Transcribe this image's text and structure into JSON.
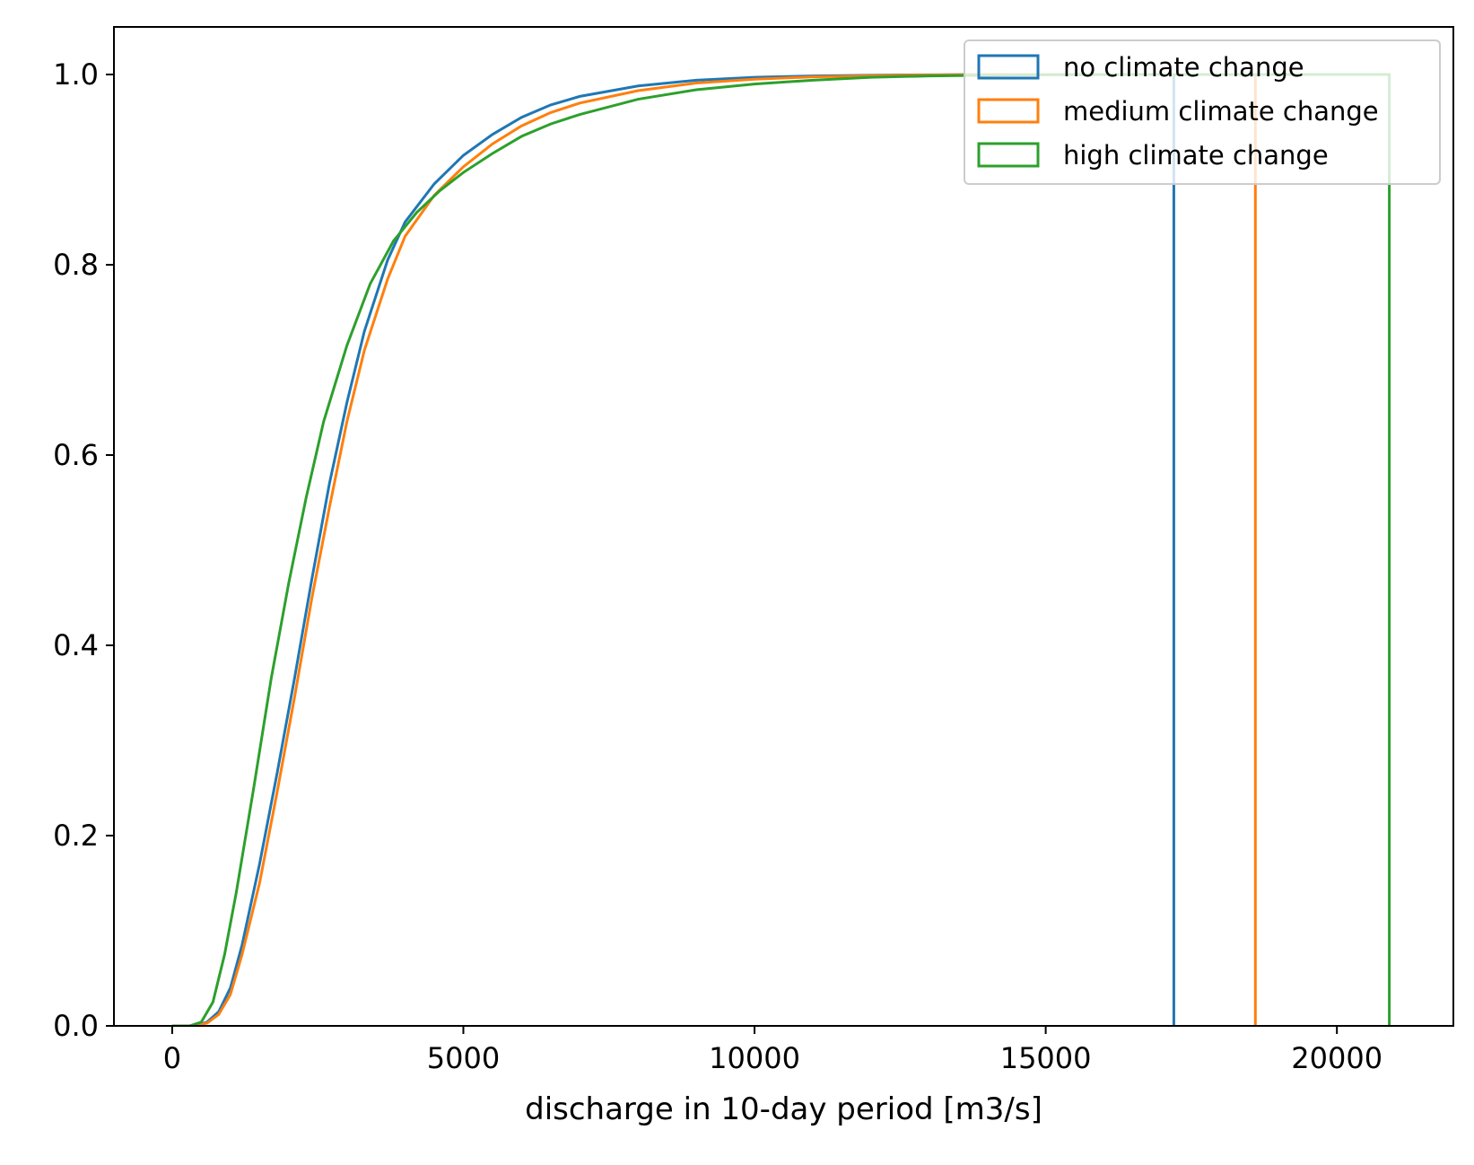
{
  "chart_data": {
    "type": "line",
    "subtype": "cumulative step histogram (CDF)",
    "title": "",
    "xlabel": "discharge in 10-day period [m3/s]",
    "ylabel": "",
    "xlim": [
      -1000,
      22000
    ],
    "ylim": [
      0,
      1.05
    ],
    "xticks": [
      0,
      5000,
      10000,
      15000,
      20000
    ],
    "xtick_labels": [
      "0",
      "5000",
      "10000",
      "15000",
      "20000"
    ],
    "yticks": [
      0,
      0.2,
      0.4,
      0.6,
      0.8,
      1.0
    ],
    "ytick_labels": [
      "0.0",
      "0.2",
      "0.4",
      "0.6",
      "0.8",
      "1.0"
    ],
    "grid": false,
    "legend_position": "top-right",
    "series": [
      {
        "name": "no climate change",
        "color": "#1f77b4",
        "x_end": 17200,
        "points": [
          [
            0,
            0
          ],
          [
            400,
            0.0
          ],
          [
            600,
            0.004
          ],
          [
            800,
            0.015
          ],
          [
            1000,
            0.04
          ],
          [
            1200,
            0.085
          ],
          [
            1500,
            0.17
          ],
          [
            1800,
            0.265
          ],
          [
            2100,
            0.365
          ],
          [
            2400,
            0.47
          ],
          [
            2700,
            0.57
          ],
          [
            3000,
            0.655
          ],
          [
            3300,
            0.73
          ],
          [
            3700,
            0.805
          ],
          [
            4000,
            0.845
          ],
          [
            4500,
            0.885
          ],
          [
            5000,
            0.915
          ],
          [
            5500,
            0.937
          ],
          [
            6000,
            0.955
          ],
          [
            6500,
            0.968
          ],
          [
            7000,
            0.977
          ],
          [
            8000,
            0.988
          ],
          [
            9000,
            0.994
          ],
          [
            10000,
            0.997
          ],
          [
            11000,
            0.9985
          ],
          [
            12500,
            0.9995
          ],
          [
            14000,
            1.0
          ],
          [
            17200,
            1.0
          ]
        ]
      },
      {
        "name": "medium climate change",
        "color": "#ff7f0e",
        "x_end": 18600,
        "points": [
          [
            0,
            0
          ],
          [
            400,
            0.0
          ],
          [
            600,
            0.003
          ],
          [
            800,
            0.012
          ],
          [
            1000,
            0.033
          ],
          [
            1200,
            0.075
          ],
          [
            1500,
            0.15
          ],
          [
            1800,
            0.245
          ],
          [
            2100,
            0.345
          ],
          [
            2400,
            0.45
          ],
          [
            2700,
            0.545
          ],
          [
            3000,
            0.635
          ],
          [
            3300,
            0.71
          ],
          [
            3700,
            0.785
          ],
          [
            4000,
            0.83
          ],
          [
            4500,
            0.873
          ],
          [
            5000,
            0.903
          ],
          [
            5500,
            0.927
          ],
          [
            6000,
            0.946
          ],
          [
            6500,
            0.96
          ],
          [
            7000,
            0.97
          ],
          [
            8000,
            0.983
          ],
          [
            9000,
            0.991
          ],
          [
            10000,
            0.995
          ],
          [
            11000,
            0.9975
          ],
          [
            12500,
            0.9992
          ],
          [
            14000,
            0.9999
          ],
          [
            18600,
            1.0
          ]
        ]
      },
      {
        "name": "high climate change",
        "color": "#2ca02c",
        "x_end": 20900,
        "points": [
          [
            0,
            0
          ],
          [
            300,
            0.0
          ],
          [
            500,
            0.004
          ],
          [
            700,
            0.025
          ],
          [
            900,
            0.075
          ],
          [
            1100,
            0.14
          ],
          [
            1400,
            0.25
          ],
          [
            1700,
            0.365
          ],
          [
            2000,
            0.465
          ],
          [
            2300,
            0.555
          ],
          [
            2600,
            0.635
          ],
          [
            3000,
            0.715
          ],
          [
            3400,
            0.78
          ],
          [
            3800,
            0.825
          ],
          [
            4200,
            0.855
          ],
          [
            4600,
            0.878
          ],
          [
            5000,
            0.897
          ],
          [
            5500,
            0.917
          ],
          [
            6000,
            0.935
          ],
          [
            6500,
            0.948
          ],
          [
            7000,
            0.958
          ],
          [
            8000,
            0.974
          ],
          [
            9000,
            0.984
          ],
          [
            10000,
            0.99
          ],
          [
            11000,
            0.994
          ],
          [
            12000,
            0.997
          ],
          [
            13000,
            0.9985
          ],
          [
            14500,
            0.9995
          ],
          [
            16000,
            1.0
          ],
          [
            20900,
            1.0
          ]
        ]
      }
    ]
  }
}
